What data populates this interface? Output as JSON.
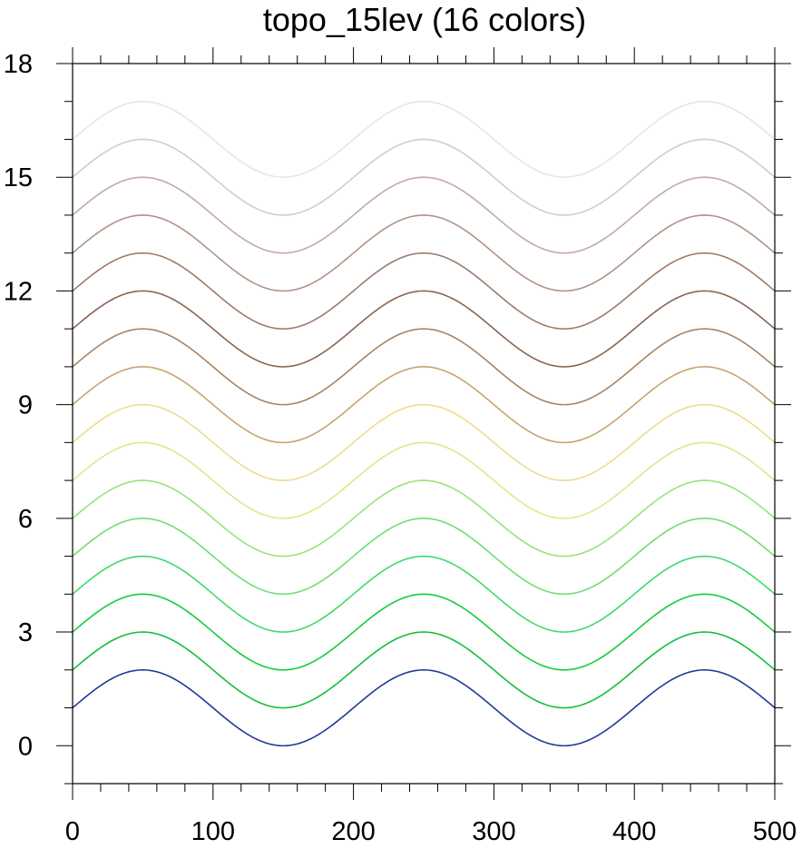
{
  "chart_data": {
    "type": "line",
    "title": "topo_15lev (16 colors)",
    "xlabel": "",
    "ylabel": "",
    "xlim": [
      0,
      500
    ],
    "ylim": [
      -1,
      18
    ],
    "xticks": [
      0,
      100,
      200,
      300,
      400,
      500
    ],
    "yticks": [
      0,
      3,
      6,
      9,
      12,
      15,
      18
    ],
    "x_minor_step": 20,
    "y_minor_step": 1,
    "grid": false,
    "legend": "none",
    "curve": {
      "form": "y = offset + 1 + sin(2*pi*x/200)",
      "period": 200,
      "amplitude": 1,
      "x_start": 0,
      "x_end": 500
    },
    "series": [
      {
        "offset": 0,
        "color": "#1f3b93"
      },
      {
        "offset": 1,
        "color": "#14be3e"
      },
      {
        "offset": 2,
        "color": "#15cc3c"
      },
      {
        "offset": 3,
        "color": "#3fd96c"
      },
      {
        "offset": 4,
        "color": "#6ddf73"
      },
      {
        "offset": 5,
        "color": "#98e478"
      },
      {
        "offset": 6,
        "color": "#dcea86"
      },
      {
        "offset": 7,
        "color": "#eedd8a"
      },
      {
        "offset": 8,
        "color": "#c6a56e"
      },
      {
        "offset": 9,
        "color": "#a88363"
      },
      {
        "offset": 10,
        "color": "#8a6451"
      },
      {
        "offset": 11,
        "color": "#9d7b6b"
      },
      {
        "offset": 12,
        "color": "#b19287"
      },
      {
        "offset": 13,
        "color": "#c2aaa3"
      },
      {
        "offset": 14,
        "color": "#d8cac7"
      },
      {
        "offset": 15,
        "color": "#e7e5e5"
      }
    ]
  }
}
